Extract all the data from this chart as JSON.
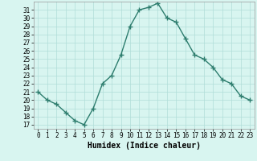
{
  "x": [
    0,
    1,
    2,
    3,
    4,
    5,
    6,
    7,
    8,
    9,
    10,
    11,
    12,
    13,
    14,
    15,
    16,
    17,
    18,
    19,
    20,
    21,
    22,
    23
  ],
  "y": [
    21,
    20,
    19.5,
    18.5,
    17.5,
    17,
    19,
    22,
    23,
    25.5,
    29,
    31,
    31.3,
    31.8,
    30,
    29.5,
    27.5,
    25.5,
    25,
    24,
    22.5,
    22,
    20.5,
    20
  ],
  "line_color": "#2d7d6e",
  "marker": "+",
  "markersize": 4,
  "linewidth": 1.0,
  "bg_color": "#d8f5f0",
  "grid_color": "#b0ddd8",
  "xlabel": "Humidex (Indice chaleur)",
  "xlabel_fontsize": 7,
  "yticks": [
    17,
    18,
    19,
    20,
    21,
    22,
    23,
    24,
    25,
    26,
    27,
    28,
    29,
    30,
    31
  ],
  "xticks": [
    0,
    1,
    2,
    3,
    4,
    5,
    6,
    7,
    8,
    9,
    10,
    11,
    12,
    13,
    14,
    15,
    16,
    17,
    18,
    19,
    20,
    21,
    22,
    23
  ],
  "xlim": [
    -0.5,
    23.5
  ],
  "ylim": [
    16.5,
    32.0
  ],
  "tick_fontsize": 5.5
}
